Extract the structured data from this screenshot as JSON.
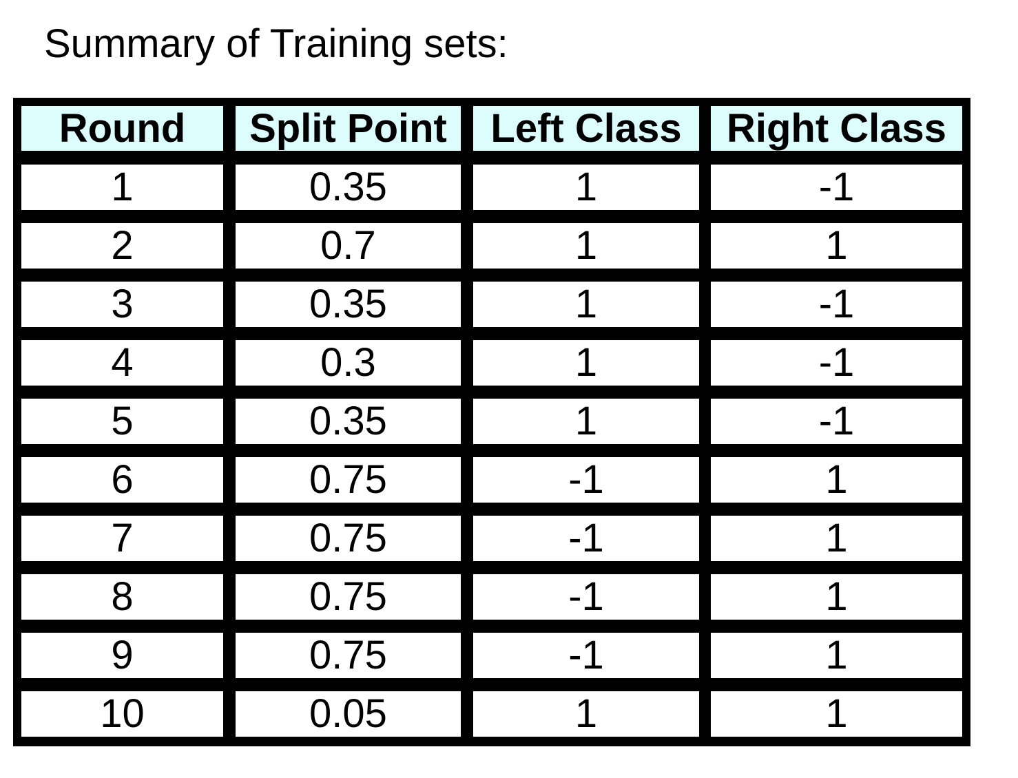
{
  "title": "Summary of Training sets:",
  "table": {
    "headers": [
      "Round",
      "Split Point",
      "Left Class",
      "Right Class"
    ],
    "rows": [
      [
        "1",
        "0.35",
        "1",
        "-1"
      ],
      [
        "2",
        "0.7",
        "1",
        "1"
      ],
      [
        "3",
        "0.35",
        "1",
        "-1"
      ],
      [
        "4",
        "0.3",
        "1",
        "-1"
      ],
      [
        "5",
        "0.35",
        "1",
        "-1"
      ],
      [
        "6",
        "0.75",
        "-1",
        "1"
      ],
      [
        "7",
        "0.75",
        "-1",
        "1"
      ],
      [
        "8",
        "0.75",
        "-1",
        "1"
      ],
      [
        "9",
        "0.75",
        "-1",
        "1"
      ],
      [
        "10",
        "0.05",
        "1",
        "1"
      ]
    ]
  },
  "colors": {
    "header_background": "#ddfcfc",
    "grid_lines": "#000000",
    "cell_background": "#ffffff"
  }
}
